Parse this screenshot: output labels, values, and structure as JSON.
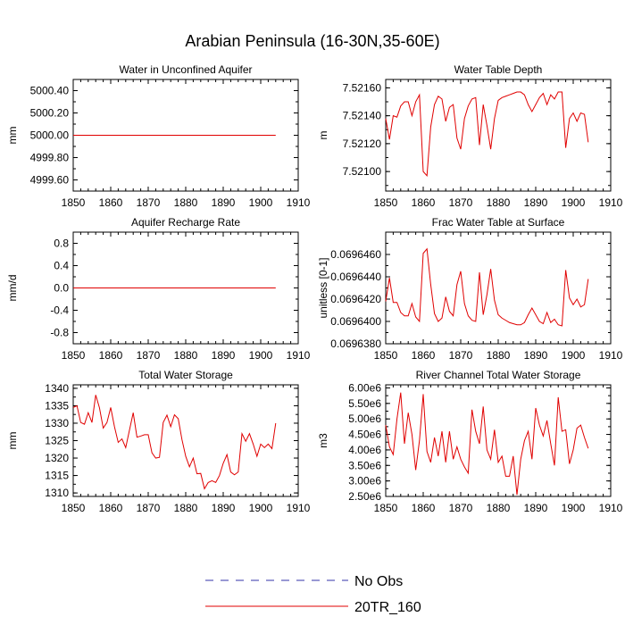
{
  "page_title": "Arabian Peninsula (16-30N,35-60E)",
  "colors": {
    "model": "#e00000",
    "obs": "#3333aa",
    "axis": "#000000"
  },
  "chart_data": [
    {
      "type": "line",
      "title": "Water in Unconfined Aquifer",
      "ylabel": "mm",
      "xlim": [
        1850,
        1910
      ],
      "ylim": [
        4999.5,
        5000.5
      ],
      "xticks": [
        "1850",
        "1860",
        "1870",
        "1880",
        "1890",
        "1900",
        "1910"
      ],
      "yticks": [
        "5000.40",
        "5000.20",
        "5000.00",
        "4999.80",
        "4999.60"
      ],
      "ytick_values": [
        5000.4,
        5000.2,
        5000.0,
        4999.8,
        4999.6
      ],
      "x": [
        1850,
        1904
      ],
      "series": [
        {
          "name": "20TR_160",
          "values": [
            5000.0,
            5000.0
          ]
        }
      ]
    },
    {
      "type": "line",
      "title": "Water Table Depth",
      "ylabel": "m",
      "xlim": [
        1850,
        1910
      ],
      "ylim": [
        7.52086,
        7.52166
      ],
      "xticks": [
        "1850",
        "1860",
        "1870",
        "1880",
        "1890",
        "1900",
        "1910"
      ],
      "yticks": [
        "7.52160",
        "7.52140",
        "7.52120",
        "7.52100"
      ],
      "ytick_values": [
        7.5216,
        7.5214,
        7.5212,
        7.521
      ],
      "x": [
        1850,
        1851,
        1852,
        1853,
        1854,
        1855,
        1856,
        1857,
        1858,
        1859,
        1860,
        1861,
        1862,
        1863,
        1864,
        1865,
        1866,
        1867,
        1868,
        1869,
        1870,
        1871,
        1872,
        1873,
        1874,
        1875,
        1876,
        1877,
        1878,
        1879,
        1880,
        1881,
        1882,
        1883,
        1884,
        1885,
        1886,
        1887,
        1888,
        1889,
        1890,
        1891,
        1892,
        1893,
        1894,
        1895,
        1896,
        1897,
        1898,
        1899,
        1900,
        1901,
        1902,
        1903,
        1904
      ],
      "series": [
        {
          "name": "20TR_160",
          "values": [
            7.52138,
            7.52123,
            7.5214,
            7.52139,
            7.52147,
            7.5215,
            7.5215,
            7.5214,
            7.5215,
            7.52155,
            7.521,
            7.52097,
            7.52132,
            7.52148,
            7.52154,
            7.52152,
            7.52136,
            7.52146,
            7.52148,
            7.52124,
            7.52116,
            7.52138,
            7.52147,
            7.52152,
            7.52153,
            7.52119,
            7.52148,
            7.52133,
            7.52116,
            7.52138,
            7.52151,
            7.52153,
            7.52154,
            7.52155,
            7.52156,
            7.52157,
            7.52157,
            7.52155,
            7.52148,
            7.52143,
            7.52148,
            7.52153,
            7.52156,
            7.52148,
            7.52155,
            7.52152,
            7.52157,
            7.52157,
            7.52117,
            7.52138,
            7.52142,
            7.52136,
            7.52142,
            7.52141,
            7.52121
          ]
        }
      ]
    },
    {
      "type": "line",
      "title": "Aquifer Recharge Rate",
      "ylabel": "mm/d",
      "xlim": [
        1850,
        1910
      ],
      "ylim": [
        -1.0,
        1.0
      ],
      "xticks": [
        "1850",
        "1860",
        "1870",
        "1880",
        "1890",
        "1900",
        "1910"
      ],
      "yticks": [
        "0.8",
        "0.4",
        "0.0",
        "-0.4",
        "-0.8"
      ],
      "ytick_values": [
        0.8,
        0.4,
        0.0,
        -0.4,
        -0.8
      ],
      "x": [
        1850,
        1904
      ],
      "series": [
        {
          "name": "20TR_160",
          "values": [
            0.0,
            0.0
          ]
        }
      ]
    },
    {
      "type": "line",
      "title": "Frac Water Table at Surface",
      "ylabel": "unitless [0-1]",
      "xlim": [
        1850,
        1910
      ],
      "ylim": [
        0.069638,
        0.069648
      ],
      "xticks": [
        "1850",
        "1860",
        "1870",
        "1880",
        "1890",
        "1900",
        "1910"
      ],
      "yticks": [
        "0.0696460",
        "0.0696440",
        "0.0696420",
        "0.0696400",
        "0.0696380"
      ],
      "ytick_values": [
        0.069646,
        0.069644,
        0.069642,
        0.06964,
        0.069638
      ],
      "x": [
        1850,
        1851,
        1852,
        1853,
        1854,
        1855,
        1856,
        1857,
        1858,
        1859,
        1860,
        1861,
        1862,
        1863,
        1864,
        1865,
        1866,
        1867,
        1868,
        1869,
        1870,
        1871,
        1872,
        1873,
        1874,
        1875,
        1876,
        1877,
        1878,
        1879,
        1880,
        1881,
        1882,
        1883,
        1884,
        1885,
        1886,
        1887,
        1888,
        1889,
        1890,
        1891,
        1892,
        1893,
        1894,
        1895,
        1896,
        1897,
        1898,
        1899,
        1900,
        1901,
        1902,
        1903,
        1904
      ],
      "series": [
        {
          "name": "20TR_160",
          "values": [
            0.0696418,
            0.0696439,
            0.0696417,
            0.0696417,
            0.0696408,
            0.0696405,
            0.0696405,
            0.0696416,
            0.0696404,
            0.06964,
            0.0696461,
            0.0696465,
            0.0696433,
            0.0696407,
            0.06964,
            0.0696403,
            0.0696422,
            0.0696409,
            0.0696405,
            0.0696433,
            0.0696445,
            0.0696416,
            0.0696405,
            0.0696401,
            0.06964,
            0.0696444,
            0.0696406,
            0.0696424,
            0.0696447,
            0.0696419,
            0.0696406,
            0.0696403,
            0.0696401,
            0.0696399,
            0.0696398,
            0.0696397,
            0.0696397,
            0.0696399,
            0.0696406,
            0.0696412,
            0.0696406,
            0.06964,
            0.0696398,
            0.0696408,
            0.0696399,
            0.0696402,
            0.0696397,
            0.0696396,
            0.0696446,
            0.0696421,
            0.0696415,
            0.069642,
            0.0696413,
            0.0696415,
            0.0696438
          ]
        }
      ]
    },
    {
      "type": "line",
      "title": "Total Water Storage",
      "ylabel": "mm",
      "xlim": [
        1850,
        1910
      ],
      "ylim": [
        1309,
        1341
      ],
      "xticks": [
        "1850",
        "1860",
        "1870",
        "1880",
        "1890",
        "1900",
        "1910"
      ],
      "yticks": [
        "1340",
        "1335",
        "1330",
        "1325",
        "1320",
        "1315",
        "1310"
      ],
      "ytick_values": [
        1340,
        1335,
        1330,
        1325,
        1320,
        1315,
        1310
      ],
      "x": [
        1850,
        1851,
        1852,
        1853,
        1854,
        1855,
        1856,
        1857,
        1858,
        1859,
        1860,
        1861,
        1862,
        1863,
        1864,
        1865,
        1866,
        1867,
        1868,
        1869,
        1870,
        1871,
        1872,
        1873,
        1874,
        1875,
        1876,
        1877,
        1878,
        1879,
        1880,
        1881,
        1882,
        1883,
        1884,
        1885,
        1886,
        1887,
        1888,
        1889,
        1890,
        1891,
        1892,
        1893,
        1894,
        1895,
        1896,
        1897,
        1898,
        1899,
        1900,
        1901,
        1902,
        1903,
        1904
      ],
      "series": [
        {
          "name": "20TR_160",
          "values": [
            1334.5,
            1335,
            1330.2,
            1329.7,
            1333,
            1330.2,
            1338.1,
            1334.4,
            1328.6,
            1330.2,
            1334.5,
            1329,
            1324.5,
            1325.5,
            1323,
            1328,
            1333,
            1326,
            1326.3,
            1326.7,
            1326.7,
            1321.5,
            1320,
            1320.2,
            1330.2,
            1332.3,
            1329,
            1332.4,
            1331.3,
            1325.3,
            1320.5,
            1317.5,
            1320,
            1315.5,
            1315.6,
            1311.2,
            1313,
            1313.5,
            1313,
            1315,
            1318.5,
            1321,
            1316,
            1315.2,
            1316,
            1327,
            1324.8,
            1327,
            1324,
            1320.5,
            1324,
            1323,
            1324,
            1322.7,
            1330
          ]
        }
      ]
    },
    {
      "type": "line",
      "title": "River Channel Total Water Storage",
      "ylabel": "m3",
      "xlim": [
        1850,
        1910
      ],
      "ylim": [
        2500000,
        6100000
      ],
      "xticks": [
        "1850",
        "1860",
        "1870",
        "1880",
        "1890",
        "1900",
        "1910"
      ],
      "yticks": [
        "6.00e6",
        "5.50e6",
        "5.00e6",
        "4.50e6",
        "4.00e6",
        "3.50e6",
        "3.00e6",
        "2.50e6"
      ],
      "ytick_values": [
        6000000,
        5500000,
        5000000,
        4500000,
        4000000,
        3500000,
        3000000,
        2500000
      ],
      "x": [
        1850,
        1851,
        1852,
        1853,
        1854,
        1855,
        1856,
        1857,
        1858,
        1859,
        1860,
        1861,
        1862,
        1863,
        1864,
        1865,
        1866,
        1867,
        1868,
        1869,
        1870,
        1871,
        1872,
        1873,
        1874,
        1875,
        1876,
        1877,
        1878,
        1879,
        1880,
        1881,
        1882,
        1883,
        1884,
        1885,
        1886,
        1887,
        1888,
        1889,
        1890,
        1891,
        1892,
        1893,
        1894,
        1895,
        1896,
        1897,
        1898,
        1899,
        1900,
        1901,
        1902,
        1903,
        1904
      ],
      "series": [
        {
          "name": "20TR_160",
          "values": [
            4800000,
            4100000,
            3850000,
            5000000,
            5850000,
            4200000,
            5200000,
            4500000,
            3350000,
            4300000,
            5800000,
            3950000,
            3600000,
            4400000,
            3800000,
            4600000,
            3600000,
            4600000,
            3700000,
            4100000,
            3700000,
            3450000,
            3250000,
            5300000,
            4600000,
            4200000,
            5400000,
            4000000,
            3700000,
            4650000,
            3600000,
            3800000,
            3150000,
            3150000,
            3800000,
            2550000,
            3700000,
            4300000,
            4600000,
            3700000,
            5350000,
            4800000,
            4450000,
            4950000,
            4200000,
            3500000,
            5700000,
            4600000,
            4650000,
            3550000,
            4000000,
            4700000,
            4800000,
            4400000,
            4050000
          ]
        }
      ]
    }
  ],
  "legend": {
    "entries": [
      {
        "label": "No Obs",
        "style": "dashed",
        "color": "#3333aa"
      },
      {
        "label": "20TR_160",
        "style": "solid",
        "color": "#e00000"
      }
    ]
  }
}
